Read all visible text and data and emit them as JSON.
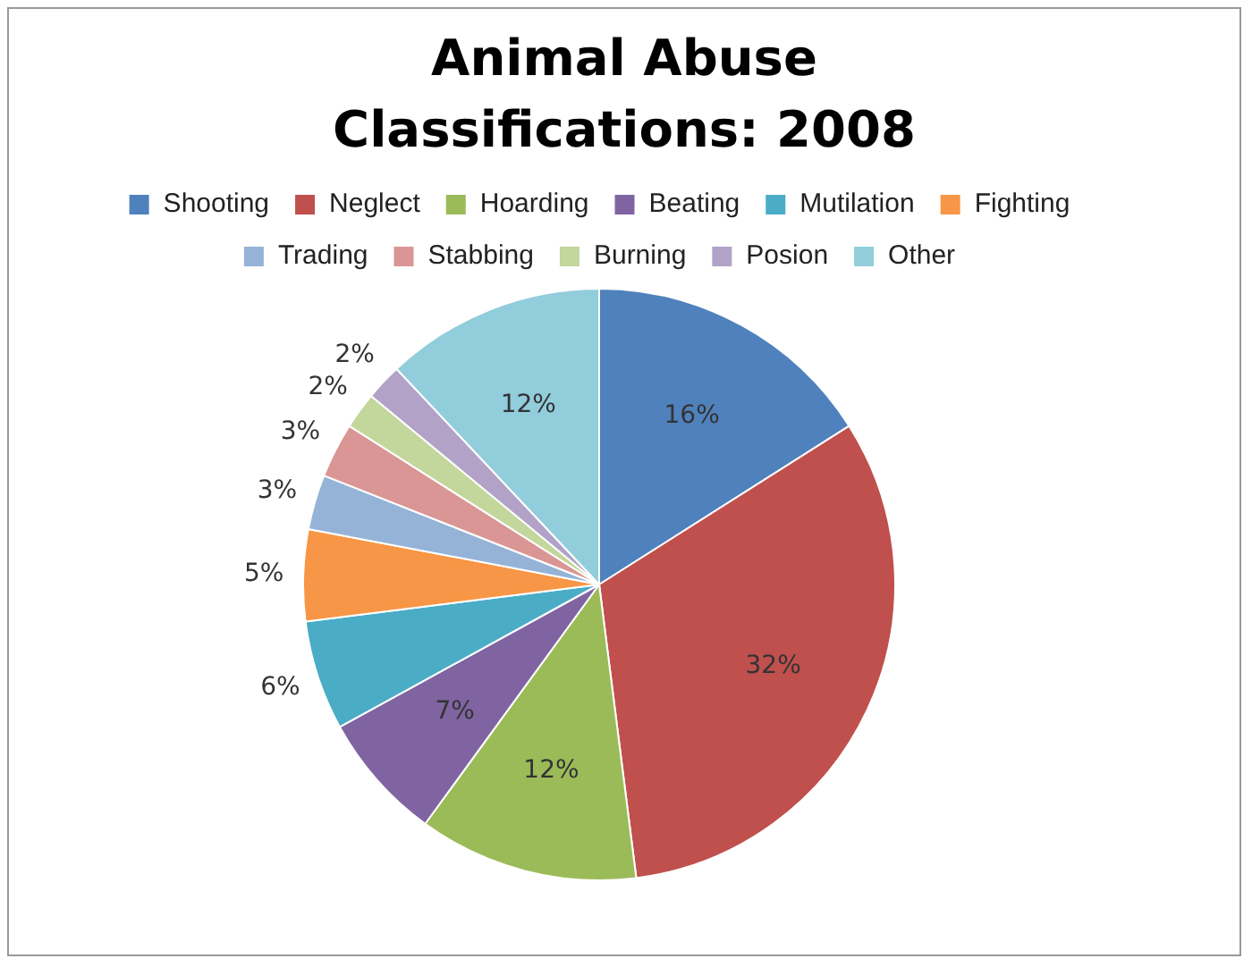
{
  "chart_data": {
    "type": "pie",
    "title": "Animal Abuse Classifications: 2008",
    "categories": [
      "Shooting",
      "Neglect",
      "Hoarding",
      "Beating",
      "Mutilation",
      "Fighting",
      "Trading",
      "Stabbing",
      "Burning",
      "Posion",
      "Other"
    ],
    "values": [
      16,
      32,
      12,
      7,
      6,
      5,
      3,
      3,
      2,
      2,
      12
    ],
    "colors": [
      "#4f81bd",
      "#c0504d",
      "#9bbb59",
      "#8064a2",
      "#4bacc6",
      "#f79646",
      "#95b3d7",
      "#d99694",
      "#c3d69b",
      "#b2a2c7",
      "#92cddc"
    ],
    "value_labels": [
      "16%",
      "32%",
      "12%",
      "7%",
      "6%",
      "5%",
      "3%",
      "3%",
      "2%",
      "2%",
      "12%"
    ],
    "legend": "top"
  }
}
